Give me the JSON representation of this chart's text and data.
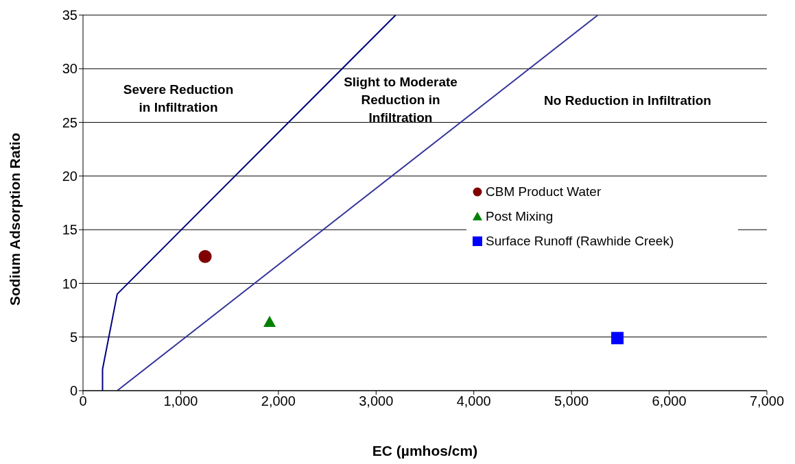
{
  "chart_data": {
    "type": "scatter",
    "xlabel": "EC (µmhos/cm)",
    "ylabel": "Sodium Adsorption Ratio",
    "xlim": [
      0,
      7000
    ],
    "xticks": [
      {
        "value": 0,
        "label": "0"
      },
      {
        "value": 1000,
        "label": "1,000"
      },
      {
        "value": 2000,
        "label": "2,000"
      },
      {
        "value": 3000,
        "label": "3,000"
      },
      {
        "value": 4000,
        "label": "4,000"
      },
      {
        "value": 5000,
        "label": "5,000"
      },
      {
        "value": 6000,
        "label": "6,000"
      },
      {
        "value": 7000,
        "label": "7,000"
      }
    ],
    "ylim": [
      0,
      35
    ],
    "yticks": [
      0,
      5,
      10,
      15,
      20,
      25,
      30,
      35
    ],
    "grid": "y",
    "legend": "right",
    "series": [
      {
        "type": "line",
        "color": "#000080",
        "x": [
          200,
          200,
          350,
          3200
        ],
        "values": [
          0,
          2,
          9,
          35
        ],
        "marker": "none"
      },
      {
        "type": "line",
        "color": "#333399",
        "x": [
          350,
          5270
        ],
        "values": [
          0,
          35
        ],
        "marker": "none"
      },
      {
        "name": "CBM Product Water",
        "color": "#800000",
        "x": [
          1250
        ],
        "values": [
          12.5
        ],
        "marker": "circle"
      },
      {
        "name": "Post Mixing",
        "color": "#008000",
        "x": [
          1910
        ],
        "values": [
          6.4
        ],
        "marker": "triangle"
      },
      {
        "name": "Surface Runoff (Rawhide Creek)",
        "color": "#0000ff",
        "x": [
          5470
        ],
        "values": [
          4.9
        ],
        "marker": "square"
      }
    ],
    "annotations": [
      "Severe Reduction\nin Infiltration",
      "Slight to Moderate\nReduction in\nInfiltration",
      "No Reduction in Infiltration"
    ]
  }
}
